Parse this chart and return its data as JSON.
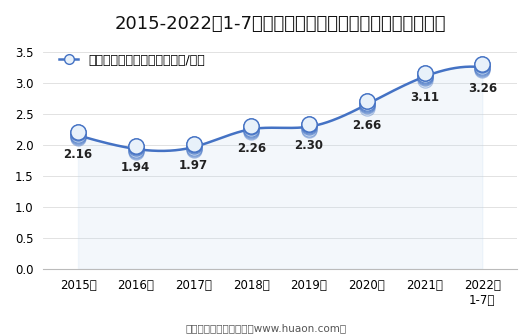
{
  "title": "2015-2022年1-7月大连商品交易所玉米淀粉期货成交均价",
  "legend_label": "玉米淀粉期货成交均价（万元/手）",
  "x_labels": [
    "2015年",
    "2016年",
    "2017年",
    "2018年",
    "2019年",
    "2020年",
    "2021年",
    "2022年\n1-7月"
  ],
  "y_values": [
    2.16,
    1.94,
    1.97,
    2.26,
    2.3,
    2.66,
    3.11,
    3.26
  ],
  "data_labels": [
    "2.16",
    "1.94",
    "1.97",
    "2.26",
    "2.30",
    "2.66",
    "3.11",
    "3.26"
  ],
  "ylim": [
    0,
    3.7
  ],
  "yticks": [
    0,
    0.5,
    1,
    1.5,
    2,
    2.5,
    3,
    3.5
  ],
  "line_color": "#4472C4",
  "fill_color": "#BDD7EE",
  "title_fontsize": 13,
  "label_fontsize": 8.5,
  "tick_fontsize": 8.5,
  "legend_fontsize": 9,
  "footer": "制图：华经产业研究院（www.huaon.com）",
  "background_color": "#FFFFFF"
}
